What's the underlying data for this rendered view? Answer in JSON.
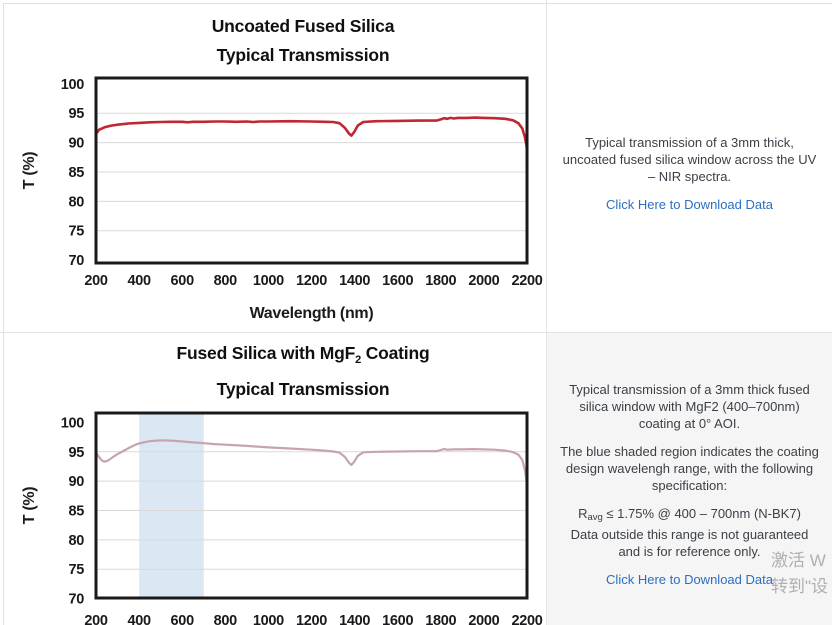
{
  "colors": {
    "curve_uncoated": "#c02730",
    "curve_coated": "#c7a4ad",
    "band": "#dbe8f4",
    "grid": "#d9d9d9",
    "frame": "#1a1a1a",
    "tick_text": "#1a1a1e",
    "link": "#2b6fc2",
    "panel_bg": "#f5f5f5"
  },
  "chart_data": [
    {
      "type": "line",
      "title_lines": [
        "Uncoated Fused Silica",
        "Typical Transmission"
      ],
      "xlabel": "Wavelength (nm)",
      "ylabel": "T (%)",
      "xlim": [
        200,
        2200
      ],
      "ylim": [
        70,
        100
      ],
      "xticks": [
        200,
        400,
        600,
        800,
        1000,
        1200,
        1400,
        1600,
        1800,
        2000,
        2200
      ],
      "yticks": [
        100,
        95,
        90,
        85,
        80,
        75,
        70
      ],
      "grid": true,
      "legend": "none",
      "color": "#c02730",
      "series_name": "Uncoated fused silica transmission",
      "points": [
        [
          200,
          91.5
        ],
        [
          215,
          92.2
        ],
        [
          240,
          92.6
        ],
        [
          270,
          92.9
        ],
        [
          300,
          93.05
        ],
        [
          350,
          93.25
        ],
        [
          400,
          93.35
        ],
        [
          450,
          93.45
        ],
        [
          500,
          93.5
        ],
        [
          550,
          93.55
        ],
        [
          600,
          93.55
        ],
        [
          625,
          93.45
        ],
        [
          650,
          93.55
        ],
        [
          700,
          93.55
        ],
        [
          750,
          93.6
        ],
        [
          800,
          93.6
        ],
        [
          850,
          93.55
        ],
        [
          900,
          93.6
        ],
        [
          930,
          93.5
        ],
        [
          960,
          93.6
        ],
        [
          1000,
          93.6
        ],
        [
          1100,
          93.65
        ],
        [
          1200,
          93.6
        ],
        [
          1260,
          93.55
        ],
        [
          1300,
          93.5
        ],
        [
          1330,
          93.3
        ],
        [
          1355,
          92.5
        ],
        [
          1375,
          91.5
        ],
        [
          1385,
          91.2
        ],
        [
          1398,
          91.8
        ],
        [
          1415,
          92.9
        ],
        [
          1440,
          93.5
        ],
        [
          1500,
          93.65
        ],
        [
          1600,
          93.7
        ],
        [
          1700,
          93.75
        ],
        [
          1780,
          93.75
        ],
        [
          1800,
          93.95
        ],
        [
          1815,
          94.15
        ],
        [
          1830,
          94.05
        ],
        [
          1845,
          94.2
        ],
        [
          1860,
          94.1
        ],
        [
          1880,
          94.2
        ],
        [
          1920,
          94.2
        ],
        [
          1960,
          94.25
        ],
        [
          2000,
          94.2
        ],
        [
          2050,
          94.15
        ],
        [
          2100,
          94.05
        ],
        [
          2135,
          93.8
        ],
        [
          2160,
          93.3
        ],
        [
          2178,
          92.4
        ],
        [
          2190,
          91.0
        ],
        [
          2197,
          89.6
        ],
        [
          2200,
          88.6
        ]
      ]
    },
    {
      "type": "line",
      "title_lines": [
        "Fused Silica with MgF2 Coating",
        "Typical Transmission"
      ],
      "title_parts": {
        "pre": "Fused Silica with MgF",
        "sub": "2",
        "post": " Coating"
      },
      "xlabel": "",
      "ylabel": "T (%)",
      "xlim": [
        200,
        2200
      ],
      "ylim": [
        70,
        100
      ],
      "xticks": [
        200,
        400,
        600,
        800,
        1000,
        1200,
        1400,
        1600,
        1800,
        2000,
        2200
      ],
      "yticks": [
        100,
        95,
        90,
        85,
        80,
        75,
        70
      ],
      "grid": true,
      "legend": "none",
      "color": "#c7a4ad",
      "band": [
        400,
        700
      ],
      "band_color": "#dbe8f4",
      "series_name": "MgF2 coated fused silica transmission",
      "points": [
        [
          200,
          94.9
        ],
        [
          212,
          94.2
        ],
        [
          228,
          93.5
        ],
        [
          240,
          93.3
        ],
        [
          255,
          93.5
        ],
        [
          275,
          94.0
        ],
        [
          300,
          94.6
        ],
        [
          330,
          95.2
        ],
        [
          360,
          95.8
        ],
        [
          390,
          96.3
        ],
        [
          420,
          96.6
        ],
        [
          450,
          96.8
        ],
        [
          480,
          96.9
        ],
        [
          510,
          96.95
        ],
        [
          540,
          96.9
        ],
        [
          570,
          96.85
        ],
        [
          600,
          96.75
        ],
        [
          650,
          96.6
        ],
        [
          700,
          96.45
        ],
        [
          750,
          96.3
        ],
        [
          800,
          96.2
        ],
        [
          900,
          96.0
        ],
        [
          1000,
          95.75
        ],
        [
          1100,
          95.55
        ],
        [
          1200,
          95.35
        ],
        [
          1260,
          95.2
        ],
        [
          1300,
          95.05
        ],
        [
          1330,
          94.85
        ],
        [
          1355,
          94.1
        ],
        [
          1375,
          93.1
        ],
        [
          1385,
          92.75
        ],
        [
          1398,
          93.3
        ],
        [
          1415,
          94.3
        ],
        [
          1440,
          94.9
        ],
        [
          1500,
          95.0
        ],
        [
          1600,
          95.05
        ],
        [
          1700,
          95.1
        ],
        [
          1780,
          95.1
        ],
        [
          1800,
          95.3
        ],
        [
          1815,
          95.45
        ],
        [
          1830,
          95.35
        ],
        [
          1860,
          95.4
        ],
        [
          1900,
          95.4
        ],
        [
          1950,
          95.45
        ],
        [
          2000,
          95.4
        ],
        [
          2050,
          95.35
        ],
        [
          2100,
          95.2
        ],
        [
          2135,
          94.95
        ],
        [
          2160,
          94.5
        ],
        [
          2178,
          93.6
        ],
        [
          2190,
          92.0
        ],
        [
          2197,
          90.2
        ],
        [
          2200,
          88.6
        ]
      ]
    }
  ],
  "panels": {
    "uncoated": {
      "description": "Typical transmission of a 3mm thick, uncoated fused silica window across the UV – NIR spectra.",
      "download_label": "Click Here to Download Data"
    },
    "coated": {
      "p1": "Typical transmission of a 3mm thick fused silica window with MgF2 (400–700nm) coating at 0° AOI.",
      "p2": "The blue shaded region indicates the coating design wavelengh range, with the following specification:",
      "spec": {
        "pre": "R",
        "sub": "avg",
        "post": " ≤ 1.75% @ 400 – 700nm (N-BK7)"
      },
      "p3": "Data outside this range is not guaranteed and is for reference only.",
      "download_label": "Click Here to Download Data"
    }
  },
  "watermark": {
    "line1": "激活 W",
    "line2": "转到\"设"
  }
}
